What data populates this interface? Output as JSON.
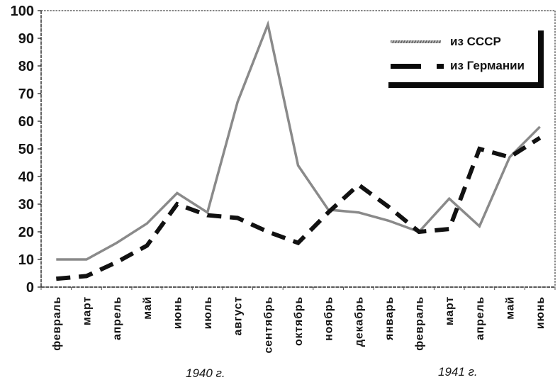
{
  "chart_data": {
    "type": "line",
    "title": "",
    "xlabel": "",
    "ylabel": "",
    "grid": false,
    "background": "#ffffff",
    "legend_position": "top-right",
    "ylim": [
      0,
      100
    ],
    "yticks": [
      0,
      10,
      20,
      30,
      40,
      50,
      60,
      70,
      80,
      90,
      100
    ],
    "categories": [
      "февраль",
      "март",
      "апрель",
      "май",
      "июнь",
      "июль",
      "август",
      "сентябрь",
      "октябрь",
      "ноябрь",
      "декабрь",
      "январь",
      "февраль",
      "март",
      "апрель",
      "май",
      "июнь"
    ],
    "series": [
      {
        "name": "из СССР",
        "line_style": "solid",
        "color": "#8a8a8a",
        "values": [
          10,
          10,
          16,
          23,
          34,
          27,
          67,
          95,
          44,
          28,
          27,
          24,
          20,
          32,
          22,
          47,
          58
        ]
      },
      {
        "name": "из Германии",
        "line_style": "dashed",
        "color": "#111111",
        "values": [
          3,
          4,
          9,
          15,
          30,
          26,
          25,
          20,
          16,
          27,
          37,
          29,
          20,
          21,
          50,
          47,
          54
        ]
      }
    ],
    "period_labels": [
      {
        "text": "1940 г."
      },
      {
        "text": "1941 г."
      }
    ]
  }
}
